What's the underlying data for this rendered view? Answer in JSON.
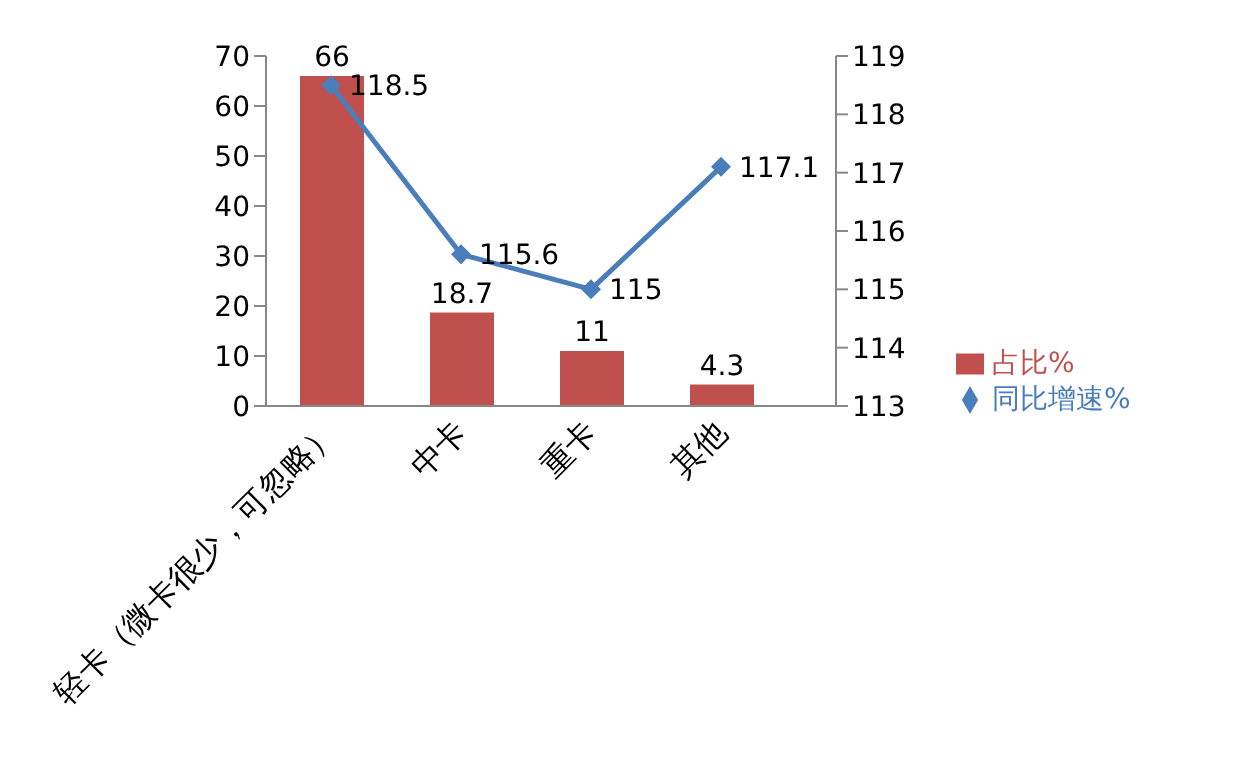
{
  "chart_data": {
    "type": "bar",
    "categories": [
      "轻卡（微卡很少，可忽略）",
      "中卡",
      "重卡",
      "其他"
    ],
    "series": [
      {
        "name": "占比%",
        "color": "#c0504d",
        "values": [
          66,
          18.7,
          11,
          4.3
        ]
      },
      {
        "name": "同比增速%",
        "type": "line",
        "axis": "y2",
        "color": "#4a7ebb",
        "values": [
          118.5,
          115.6,
          115,
          117.1
        ]
      }
    ],
    "ylim": [
      0,
      70
    ],
    "yticks": [
      0,
      10,
      20,
      30,
      40,
      50,
      60,
      70
    ],
    "y2lim": [
      113,
      119
    ],
    "y2ticks": [
      113,
      114,
      115,
      116,
      117,
      118,
      119
    ],
    "data_labels": true,
    "marker": "diamond",
    "line_style": "solid",
    "legend": "right"
  }
}
